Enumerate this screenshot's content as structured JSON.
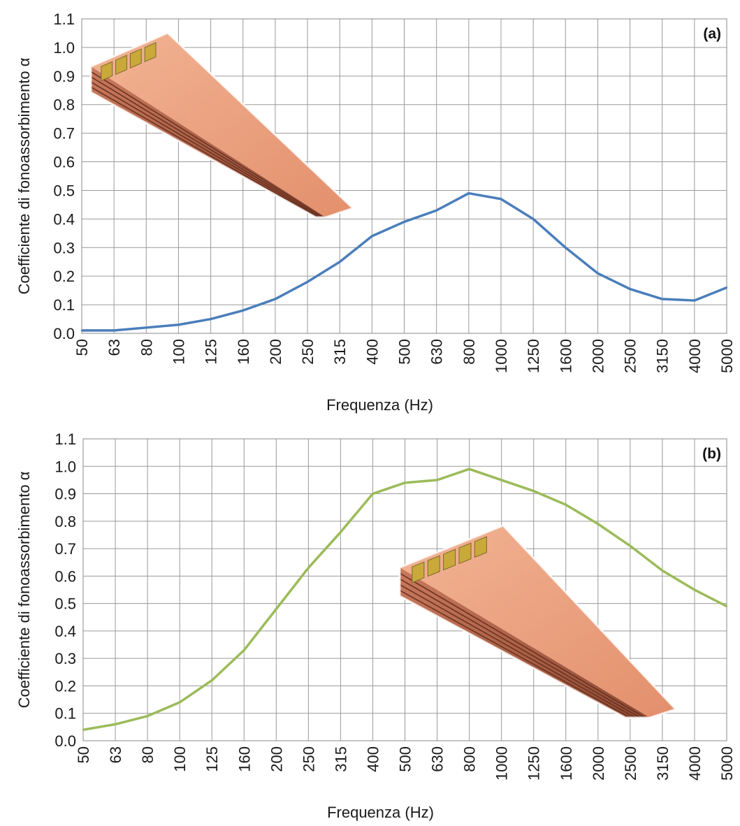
{
  "chart_data": [
    {
      "type": "line",
      "panel_label": "(a)",
      "xlabel": "Frequenza (Hz)",
      "ylabel": "Coefficiente di fonoassorbimento α",
      "categories": [
        "50",
        "63",
        "80",
        "100",
        "125",
        "160",
        "200",
        "250",
        "315",
        "400",
        "500",
        "630",
        "800",
        "1000",
        "1250",
        "1600",
        "2000",
        "2500",
        "3150",
        "4000",
        "5000"
      ],
      "y_ticks": [
        "0.0",
        "0.1",
        "0.2",
        "0.3",
        "0.4",
        "0.5",
        "0.6",
        "0.7",
        "0.8",
        "0.9",
        "1.0",
        "1.1"
      ],
      "ylim": [
        0,
        1.1
      ],
      "grid": true,
      "series": [
        {
          "color": "#4a7ebb",
          "values": [
            0.01,
            0.01,
            0.02,
            0.03,
            0.05,
            0.08,
            0.12,
            0.18,
            0.25,
            0.34,
            0.39,
            0.43,
            0.49,
            0.47,
            0.4,
            0.3,
            0.21,
            0.155,
            0.12,
            0.115,
            0.16
          ]
        }
      ],
      "inset_image": "hollow-brick-with-filled-cavities-icon"
    },
    {
      "type": "line",
      "panel_label": "(b)",
      "xlabel": "Frequenza (Hz)",
      "ylabel": "Coefficiente di fonoassorbimento α",
      "categories": [
        "50",
        "63",
        "80",
        "100",
        "125",
        "160",
        "200",
        "250",
        "315",
        "400",
        "500",
        "630",
        "800",
        "1000",
        "1250",
        "1600",
        "2000",
        "2500",
        "3150",
        "4000",
        "5000"
      ],
      "y_ticks": [
        "0.0",
        "0.1",
        "0.2",
        "0.3",
        "0.4",
        "0.5",
        "0.6",
        "0.7",
        "0.8",
        "0.9",
        "1.0",
        "1.1"
      ],
      "ylim": [
        0,
        1.1
      ],
      "grid": true,
      "series": [
        {
          "color": "#9bbb59",
          "values": [
            0.04,
            0.06,
            0.09,
            0.14,
            0.22,
            0.33,
            0.48,
            0.63,
            0.76,
            0.9,
            0.94,
            0.95,
            0.99,
            0.95,
            0.91,
            0.86,
            0.79,
            0.71,
            0.62,
            0.55,
            0.49
          ]
        }
      ],
      "inset_image": "hollow-brick-with-filled-cavities-icon"
    }
  ]
}
